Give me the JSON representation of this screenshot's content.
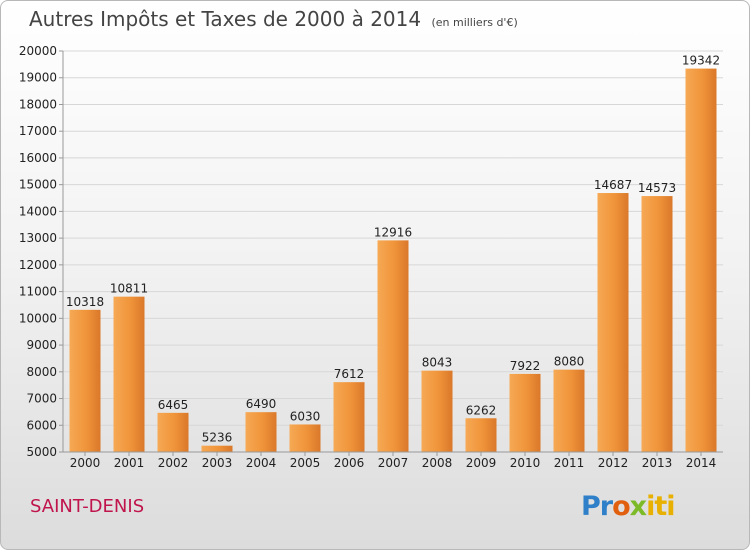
{
  "chart_data": {
    "type": "bar",
    "title": "Autres Impôts et Taxes de 2000 à 2014",
    "subtitle": "(en milliers d'€)",
    "categories": [
      "2000",
      "2001",
      "2002",
      "2003",
      "2004",
      "2005",
      "2006",
      "2007",
      "2008",
      "2009",
      "2010",
      "2011",
      "2012",
      "2013",
      "2014"
    ],
    "values": [
      10318,
      10811,
      6465,
      5236,
      6490,
      6030,
      7612,
      12916,
      8043,
      6262,
      7922,
      8080,
      14687,
      14573,
      19342
    ],
    "ylim": [
      5000,
      20000
    ],
    "yticks": [
      5000,
      6000,
      7000,
      8000,
      9000,
      10000,
      11000,
      12000,
      13000,
      14000,
      15000,
      16000,
      17000,
      18000,
      19000,
      20000
    ],
    "grid": true,
    "bar_color": "#f0943a",
    "xlabel": "",
    "ylabel": ""
  },
  "footer": {
    "city": "SAINT-DENIS",
    "logo": [
      "Pr",
      "o",
      "x",
      "iti"
    ]
  }
}
